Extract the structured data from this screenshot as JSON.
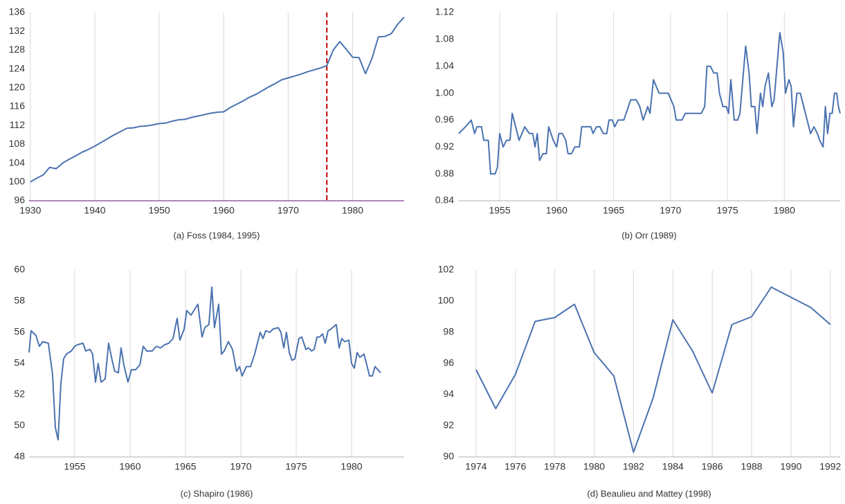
{
  "chart_data": [
    {
      "type": "line",
      "title": "(a) Foss (1984, 1995)",
      "color": "#4a72b0",
      "axis_color": "#7b3f8f",
      "grid": true,
      "x": [
        1930,
        1931,
        1932,
        1933,
        1934,
        1935,
        1936,
        1937,
        1938,
        1939,
        1940,
        1941,
        1942,
        1943,
        1944,
        1945,
        1946,
        1947,
        1948,
        1949,
        1950,
        1951,
        1952,
        1953,
        1954,
        1955,
        1956,
        1957,
        1958,
        1959,
        1960,
        1961,
        1962,
        1963,
        1964,
        1965,
        1966,
        1967,
        1968,
        1969,
        1970,
        1971,
        1972,
        1973,
        1974,
        1975,
        1976,
        1977,
        1978,
        1979,
        1980,
        1981,
        1982,
        1983,
        1984,
        1985,
        1986,
        1987,
        1988
      ],
      "values": [
        100,
        100.8,
        101.5,
        103.1,
        102.8,
        104,
        104.8,
        105.5,
        106.3,
        106.9,
        107.6,
        108.4,
        109.2,
        110,
        110.7,
        111.4,
        111.5,
        111.8,
        111.9,
        112.1,
        112.4,
        112.5,
        112.9,
        113.2,
        113.3,
        113.7,
        114,
        114.3,
        114.6,
        114.8,
        114.9,
        115.8,
        116.5,
        117.2,
        118,
        118.6,
        119.4,
        120.2,
        120.9,
        121.7,
        122.1,
        122.5,
        122.9,
        123.4,
        123.8,
        124.2,
        124.7,
        128,
        129.8,
        128.2,
        126.5,
        126.4,
        123,
        126.2,
        130.8,
        130.9,
        131.5,
        133.5,
        135
      ],
      "xlim": [
        1929.8,
        1988
      ],
      "ylim": [
        96,
        136
      ],
      "xticks": [
        1930,
        1940,
        1950,
        1960,
        1970,
        1980
      ],
      "yticks": [
        96,
        100,
        104,
        108,
        112,
        116,
        120,
        124,
        128,
        132,
        136
      ],
      "vline": {
        "x": 1976,
        "color": "#c00000"
      }
    },
    {
      "type": "line",
      "title": "(b) Orr (1989)",
      "color": "#4a72b0",
      "axis_color": "#bfbfbf",
      "grid": true,
      "x": [
        1951.4,
        1952,
        1952.5,
        1952.8,
        1953,
        1953.4,
        1953.6,
        1954,
        1954.2,
        1954.6,
        1954.8,
        1955,
        1955.3,
        1955.6,
        1955.9,
        1956.1,
        1956.4,
        1956.7,
        1957.2,
        1957.6,
        1957.9,
        1958.1,
        1958.3,
        1958.5,
        1958.8,
        1959.1,
        1959.3,
        1959.7,
        1960,
        1960.2,
        1960.5,
        1960.8,
        1961,
        1961.3,
        1961.6,
        1962,
        1962.2,
        1963,
        1963.2,
        1963.5,
        1963.8,
        1964.1,
        1964.4,
        1964.6,
        1964.9,
        1965.1,
        1965.4,
        1965.9,
        1966.5,
        1967,
        1967.3,
        1967.6,
        1968,
        1968.2,
        1968.5,
        1969,
        1969.8,
        1970.3,
        1970.5,
        1971,
        1971.3,
        1972,
        1972.7,
        1973,
        1973.2,
        1973.5,
        1973.8,
        1974.1,
        1974.3,
        1974.6,
        1974.9,
        1975.1,
        1975.3,
        1975.6,
        1975.9,
        1976.1,
        1976.4,
        1976.6,
        1976.9,
        1977.1,
        1977.4,
        1977.6,
        1977.9,
        1978.1,
        1978.3,
        1978.6,
        1978.9,
        1979.1,
        1979.4,
        1979.6,
        1979.9,
        1980.1,
        1980.4,
        1980.6,
        1980.8,
        1981.1,
        1981.4,
        1981.7,
        1982,
        1982.3,
        1982.6,
        1982.9,
        1983.1,
        1983.4,
        1983.6,
        1983.8,
        1984,
        1984.2,
        1984.4,
        1984.6,
        1984.75,
        1984.9
      ],
      "values": [
        0.94,
        0.95,
        0.96,
        0.94,
        0.95,
        0.95,
        0.93,
        0.93,
        0.88,
        0.88,
        0.89,
        0.94,
        0.92,
        0.93,
        0.93,
        0.97,
        0.95,
        0.93,
        0.95,
        0.94,
        0.94,
        0.92,
        0.94,
        0.9,
        0.91,
        0.91,
        0.95,
        0.93,
        0.92,
        0.94,
        0.94,
        0.93,
        0.91,
        0.91,
        0.92,
        0.92,
        0.95,
        0.95,
        0.94,
        0.95,
        0.95,
        0.94,
        0.94,
        0.96,
        0.96,
        0.95,
        0.96,
        0.96,
        0.99,
        0.99,
        0.98,
        0.96,
        0.98,
        0.97,
        1.02,
        1,
        1,
        0.98,
        0.96,
        0.96,
        0.97,
        0.97,
        0.97,
        0.98,
        1.04,
        1.04,
        1.03,
        1.03,
        1,
        0.98,
        0.98,
        0.97,
        1.02,
        0.96,
        0.96,
        0.97,
        1.03,
        1.07,
        1.03,
        0.98,
        0.98,
        0.94,
        1,
        0.98,
        1.01,
        1.03,
        0.98,
        0.99,
        1.05,
        1.09,
        1.06,
        1,
        1.02,
        1.01,
        0.95,
        1,
        1,
        0.98,
        0.96,
        0.94,
        0.95,
        0.94,
        0.93,
        0.92,
        0.98,
        0.94,
        0.97,
        0.97,
        1,
        1,
        0.98,
        0.97
      ],
      "xlim": [
        1951.35,
        1984.9
      ],
      "ylim": [
        0.84,
        1.12
      ],
      "xticks": [
        1955,
        1960,
        1965,
        1970,
        1975,
        1980
      ],
      "yticks": [
        0.84,
        0.88,
        0.92,
        0.96,
        {
          "value": 1,
          "label": "1.00"
        },
        1.04,
        1.08,
        1.12
      ]
    },
    {
      "type": "line",
      "title": "(c) Shapiro (1986)",
      "color": "#4a72b0",
      "axis_color": "#bfbfbf",
      "grid": true,
      "x": [
        1950.88,
        1951.06,
        1951.5,
        1951.81,
        1952.12,
        1952.62,
        1953,
        1953.25,
        1953.5,
        1953.75,
        1954,
        1954.25,
        1954.69,
        1955,
        1955.25,
        1955.75,
        1956,
        1956.38,
        1956.62,
        1956.88,
        1957.12,
        1957.38,
        1957.75,
        1958.06,
        1958.38,
        1958.62,
        1958.94,
        1959.19,
        1959.44,
        1959.81,
        1960.12,
        1960.5,
        1960.88,
        1961.19,
        1961.5,
        1962,
        1962.38,
        1962.75,
        1963.12,
        1963.5,
        1963.88,
        1964.25,
        1964.5,
        1964.88,
        1965.12,
        1965.5,
        1966.12,
        1966.5,
        1966.75,
        1967.12,
        1967.38,
        1967.62,
        1968,
        1968.25,
        1968.5,
        1968.88,
        1969.25,
        1969.62,
        1969.88,
        1970.12,
        1970.5,
        1970.88,
        1971.25,
        1971.75,
        1972,
        1972.25,
        1972.62,
        1972.88,
        1973.38,
        1973.62,
        1973.88,
        1974.12,
        1974.38,
        1974.62,
        1974.88,
        1975.25,
        1975.5,
        1975.88,
        1976.12,
        1976.38,
        1976.62,
        1976.88,
        1977.12,
        1977.38,
        1977.62,
        1977.88,
        1978.12,
        1978.62,
        1978.88,
        1979.12,
        1979.38,
        1979.75,
        1980,
        1980.25,
        1980.5,
        1980.75,
        1981.12,
        1981.38,
        1981.62,
        1981.88,
        1982.12,
        1982.38,
        1982.62
      ],
      "values": [
        54.7,
        56.1,
        55.8,
        55.1,
        55.4,
        55.3,
        53.3,
        49.9,
        49.1,
        52.7,
        54.3,
        54.6,
        54.8,
        55.1,
        55.2,
        55.3,
        54.8,
        54.9,
        54.6,
        52.8,
        54,
        52.8,
        53,
        55.3,
        54.2,
        53.5,
        53.4,
        55,
        53.9,
        52.8,
        53.6,
        53.6,
        53.9,
        55.1,
        54.8,
        54.8,
        55.1,
        55,
        55.2,
        55.3,
        55.6,
        56.9,
        55.5,
        56.2,
        57.4,
        57.1,
        57.8,
        55.7,
        56.3,
        56.5,
        58.9,
        56.3,
        57.8,
        54.6,
        54.8,
        55.4,
        54.9,
        53.5,
        53.8,
        53.2,
        53.8,
        53.8,
        54.6,
        56,
        55.6,
        56.1,
        56,
        56.2,
        56.3,
        56,
        55,
        56,
        54.7,
        54.2,
        54.3,
        55.6,
        55.7,
        54.9,
        55,
        54.8,
        54.9,
        55.7,
        55.7,
        55.9,
        55.3,
        56.1,
        56.2,
        56.5,
        55,
        55.6,
        55.4,
        55.5,
        54,
        53.7,
        54.7,
        54.4,
        54.6,
        53.9,
        53.2,
        53.2,
        53.8,
        53.6,
        53.4
      ],
      "xlim": [
        1950.88,
        1984.75
      ],
      "ylim": [
        48,
        60
      ],
      "xticks": [
        1955,
        1960,
        1965,
        1970,
        1975,
        1980
      ],
      "yticks": [
        48,
        50,
        52,
        54,
        56,
        58,
        60
      ]
    },
    {
      "type": "line",
      "title": "(d) Beaulieu and Mattey (1998)",
      "color": "#4a72b0",
      "axis_color": "#bfbfbf",
      "grid": true,
      "x": [
        1974,
        1975,
        1976,
        1977,
        1978,
        1979,
        1980,
        1981,
        1982,
        1983,
        1984,
        1985,
        1986,
        1987,
        1988,
        1989,
        1990,
        1991,
        1992
      ],
      "values": [
        95.6,
        93.1,
        95.3,
        98.7,
        98.95,
        99.8,
        96.7,
        95.2,
        90.3,
        93.8,
        98.8,
        96.8,
        94.1,
        98.5,
        99,
        100.9,
        100.25,
        99.6,
        98.5
      ],
      "xlim": [
        1973.09,
        1992.5
      ],
      "ylim": [
        90,
        102
      ],
      "xticks": [
        1974,
        1976,
        1978,
        1980,
        1982,
        1984,
        1986,
        1988,
        1990,
        1992
      ],
      "yticks": [
        90,
        92,
        94,
        96,
        98,
        100,
        102
      ]
    }
  ]
}
